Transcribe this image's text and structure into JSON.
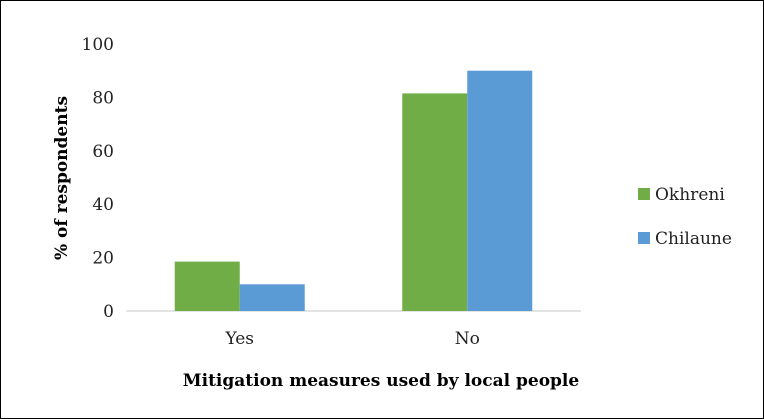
{
  "chart_data": {
    "type": "bar",
    "title": "",
    "xlabel": "Mitigation  measures used by local people",
    "ylabel": "% of respondents",
    "categories": [
      "Yes",
      "No"
    ],
    "series": [
      {
        "name": "Okhreni",
        "values": [
          18.5,
          81.5
        ],
        "color": "#70ad47"
      },
      {
        "name": "Chilaune",
        "values": [
          10,
          90
        ],
        "color": "#5b9bd5"
      }
    ],
    "ylim": [
      0,
      100
    ],
    "yticks": [
      "0",
      "20",
      "40",
      "60",
      "80",
      "100"
    ],
    "grid": false,
    "legend": "right"
  }
}
